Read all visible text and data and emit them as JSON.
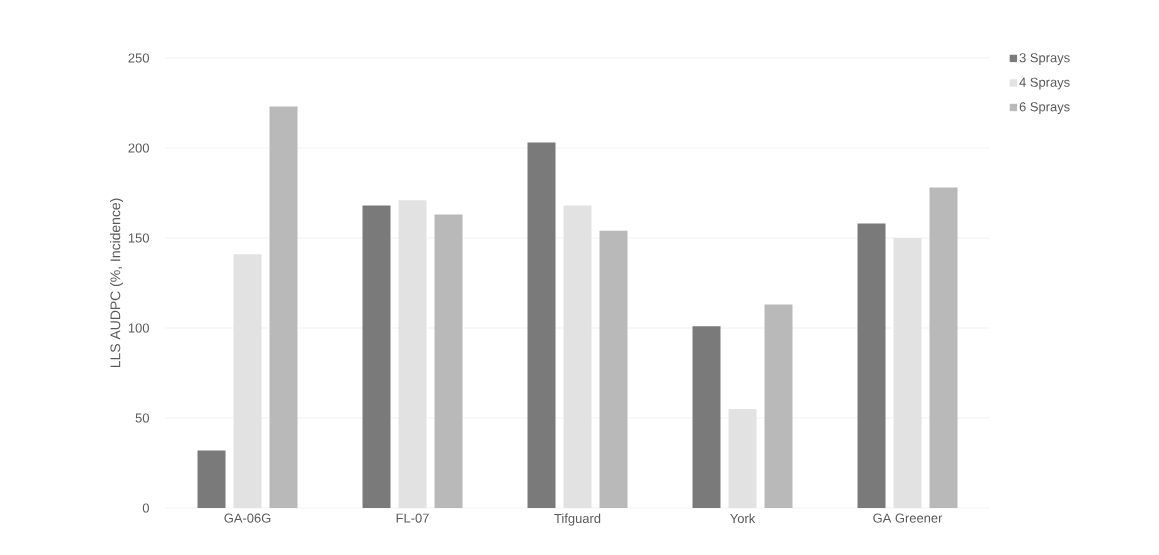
{
  "chart_data": {
    "type": "bar",
    "ylabel": "LLS AUDPC (%, Incidence)",
    "categories": [
      "GA-06G",
      "FL-07",
      "Tifguard",
      "York",
      "GA Greener"
    ],
    "series": [
      {
        "name": "3 Sprays",
        "color": "#7a7a7a",
        "values": [
          32,
          168,
          203,
          101,
          158
        ]
      },
      {
        "name": "4 Sprays",
        "color": "#e2e2e2",
        "values": [
          141,
          171,
          168,
          55,
          150
        ]
      },
      {
        "name": "6 Sprays",
        "color": "#b9b9b9",
        "values": [
          223,
          163,
          154,
          113,
          178
        ]
      }
    ],
    "ylim": [
      0,
      250
    ],
    "yticks": [
      0,
      50,
      100,
      150,
      200,
      250
    ],
    "grid": "y",
    "legend": "top right"
  }
}
